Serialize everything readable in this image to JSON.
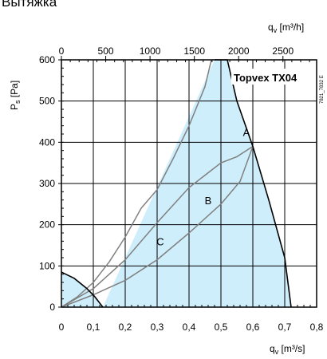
{
  "header": {
    "title": "Вытяжка"
  },
  "chart_data": {
    "type": "line",
    "model": "Topvex TX04",
    "ref_code": "7821_7832 E",
    "ylabel": "P",
    "ylabel_sub": "s",
    "ylabel_unit": " [Pa]",
    "xlabel": "q",
    "xlabel_sub": "v",
    "xlabel_unit": " [m³/s]",
    "x2label": "q",
    "x2label_sub": "v",
    "x2label_unit": " [m³/h]",
    "xlim": [
      0,
      0.8
    ],
    "ylim": [
      0,
      600
    ],
    "x2lim": [
      0,
      2880
    ],
    "xticks": [
      0,
      0.1,
      0.2,
      0.3,
      0.4,
      0.5,
      0.6,
      0.7,
      0.8
    ],
    "xtick_labels": [
      "0",
      "0,1",
      "0,2",
      "0,3",
      "0,4",
      "0,5",
      "0,6",
      "0,7",
      "0,8"
    ],
    "x2ticks": [
      0,
      500,
      1000,
      1500,
      2000,
      2500
    ],
    "yticks": [
      0,
      100,
      200,
      300,
      400,
      500,
      600
    ],
    "grid": true,
    "area_color": "#cfeefb",
    "curve_color": "#808080",
    "boundary_color": "#000000",
    "operating_area": {
      "x": [
        0,
        0,
        0.04,
        0.08,
        0.105,
        0.12,
        0.13,
        0.48,
        0.52,
        0.55,
        0.6,
        0.65,
        0.7,
        0.72
      ],
      "y": [
        0,
        85,
        70,
        45,
        25,
        10,
        0,
        600,
        600,
        500,
        390,
        260,
        120,
        0
      ]
    },
    "series": [
      {
        "name": "A",
        "x": [
          0,
          0.05,
          0.1,
          0.15,
          0.2,
          0.25,
          0.3,
          0.35,
          0.4,
          0.45,
          0.47
        ],
        "y": [
          0,
          25,
          60,
          110,
          170,
          240,
          285,
          360,
          440,
          535,
          600
        ]
      },
      {
        "name": "B",
        "x": [
          0,
          0.1,
          0.2,
          0.3,
          0.4,
          0.5,
          0.55,
          0.6
        ],
        "y": [
          0,
          45,
          115,
          205,
          290,
          350,
          365,
          390
        ]
      },
      {
        "name": "C",
        "x": [
          0,
          0.1,
          0.2,
          0.3,
          0.4,
          0.5,
          0.56,
          0.6
        ],
        "y": [
          0,
          30,
          65,
          115,
          180,
          250,
          305,
          390
        ]
      }
    ],
    "point_labels": [
      {
        "text": "A",
        "x": 0.58,
        "y": 415
      },
      {
        "text": "B",
        "x": 0.46,
        "y": 250
      },
      {
        "text": "C",
        "x": 0.31,
        "y": 150
      }
    ]
  }
}
